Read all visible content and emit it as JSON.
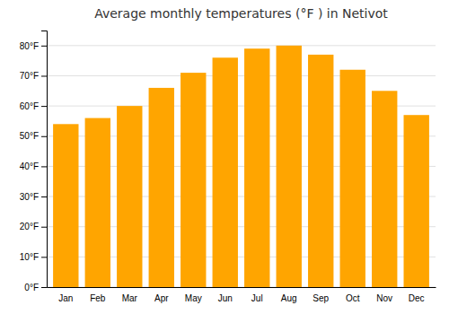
{
  "chart_data": {
    "type": "bar",
    "title": "Average monthly temperatures (°F ) in Netivot",
    "categories": [
      "Jan",
      "Feb",
      "Mar",
      "Apr",
      "May",
      "Jun",
      "Jul",
      "Aug",
      "Sep",
      "Oct",
      "Nov",
      "Dec"
    ],
    "values": [
      54,
      56,
      60,
      66,
      71,
      76,
      79,
      80,
      77,
      72,
      65,
      57
    ],
    "color": "#FFA500",
    "ylim": [
      0,
      85
    ],
    "yticks": [
      {
        "value": 0,
        "label": "0°F"
      },
      {
        "value": 10,
        "label": "10°F"
      },
      {
        "value": 20,
        "label": "20°F"
      },
      {
        "value": 30,
        "label": "30°F"
      },
      {
        "value": 40,
        "label": "40°F"
      },
      {
        "value": 50,
        "label": "50°F"
      },
      {
        "value": 60,
        "label": "60°F"
      },
      {
        "value": 70,
        "label": "70°F"
      },
      {
        "value": 80,
        "label": "80°F"
      }
    ],
    "grid": true
  }
}
